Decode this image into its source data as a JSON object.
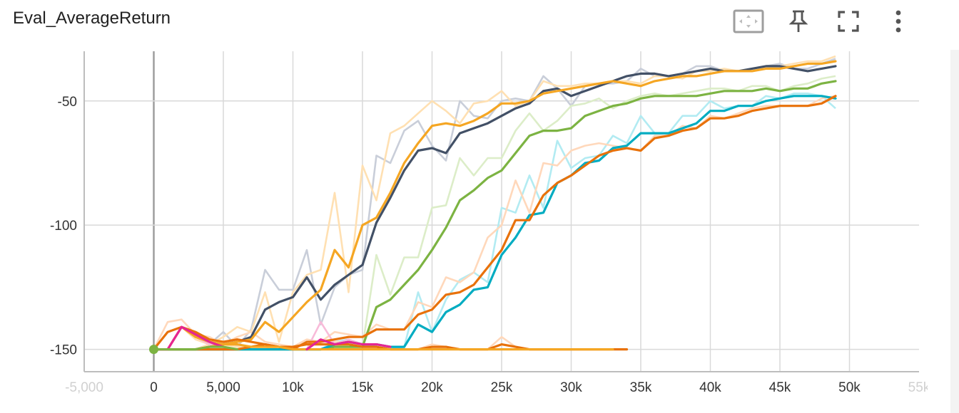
{
  "title": "Eval_AverageReturn",
  "toolbar": {
    "icons": [
      "fit-domain-icon",
      "pin-icon",
      "fullscreen-icon",
      "more-vert-icon"
    ]
  },
  "colors": {
    "grid": "#d9d9d9",
    "axis": "#bdbdbd",
    "zero_axis": "#9e9e9e",
    "start_dot": "#7cb342"
  },
  "chart_data": {
    "type": "line",
    "title": "Eval_AverageReturn",
    "xlabel": "",
    "ylabel": "",
    "xlim": [
      -5000,
      55000
    ],
    "ylim": [
      -159,
      -30
    ],
    "x_ticks": [
      {
        "value": -5000,
        "label": "-5,000",
        "faded": true
      },
      {
        "value": 0,
        "label": "0"
      },
      {
        "value": 5000,
        "label": "5,000"
      },
      {
        "value": 10000,
        "label": "10k"
      },
      {
        "value": 15000,
        "label": "15k"
      },
      {
        "value": 20000,
        "label": "20k"
      },
      {
        "value": 25000,
        "label": "25k"
      },
      {
        "value": 30000,
        "label": "30k"
      },
      {
        "value": 35000,
        "label": "35k"
      },
      {
        "value": 40000,
        "label": "40k"
      },
      {
        "value": 45000,
        "label": "45k"
      },
      {
        "value": 50000,
        "label": "50k"
      },
      {
        "value": 55000,
        "label": "55k",
        "faded": true
      }
    ],
    "y_ticks": [
      {
        "value": -50,
        "label": "-50"
      },
      {
        "value": -100,
        "label": "-100"
      },
      {
        "value": -150,
        "label": "-150"
      }
    ],
    "grid": true,
    "series": [
      {
        "color": "#425066",
        "raw_color": "#c9ced9",
        "x": [
          0,
          1000,
          2000,
          3000,
          4000,
          5000,
          6000,
          7000,
          8000,
          9000,
          10000,
          11000,
          12000,
          13000,
          14000,
          15000,
          16000,
          17000,
          18000,
          19000,
          20000,
          21000,
          22000,
          23000,
          24000,
          25000,
          26000,
          27000,
          28000,
          29000,
          30000,
          31000,
          32000,
          33000,
          34000,
          35000,
          36000,
          37000,
          38000,
          39000,
          40000,
          41000,
          42000,
          43000,
          44000,
          45000,
          46000,
          47000,
          48000,
          49000
        ],
        "values": [
          -150,
          -150,
          -150,
          -150,
          -149,
          -148,
          -147,
          -145,
          -134,
          -131,
          -129,
          -121,
          -130,
          -124,
          -120,
          -116,
          -99,
          -89,
          -78,
          -70,
          -69,
          -71,
          -63,
          -61,
          -59,
          -56,
          -53,
          -51,
          -46,
          -45,
          -48,
          -46,
          -44,
          -42,
          -40,
          -39,
          -39,
          -40,
          -39,
          -38,
          -37,
          -38,
          -38,
          -37,
          -36,
          -36,
          -37,
          -38,
          -37,
          -36
        ],
        "raw": [
          -150,
          -150,
          -150,
          -150,
          -148,
          -143,
          -149,
          -142,
          -118,
          -126,
          -126,
          -110,
          -140,
          -125,
          -120,
          -118,
          -72,
          -75,
          -62,
          -58,
          -68,
          -74,
          -50,
          -56,
          -57,
          -50,
          -49,
          -50,
          -40,
          -45,
          -52,
          -44,
          -43,
          -43,
          -42,
          -37,
          -40,
          -40,
          -39,
          -36,
          -36,
          -38,
          -38,
          -37,
          -36,
          -35,
          -37,
          -37,
          -35,
          -33
        ]
      },
      {
        "color": "#f5a623",
        "raw_color": "#ffe0b2",
        "x": [
          0,
          1000,
          2000,
          3000,
          4000,
          5000,
          6000,
          7000,
          8000,
          9000,
          10000,
          11000,
          12000,
          13000,
          14000,
          15000,
          16000,
          17000,
          18000,
          19000,
          20000,
          21000,
          22000,
          23000,
          24000,
          25000,
          26000,
          27000,
          28000,
          29000,
          30000,
          31000,
          32000,
          33000,
          34000,
          35000,
          36000,
          37000,
          38000,
          39000,
          40000,
          41000,
          42000,
          43000,
          44000,
          45000,
          46000,
          47000,
          48000,
          49000
        ],
        "values": [
          -150,
          -150,
          -150,
          -150,
          -149,
          -148,
          -147,
          -146,
          -139,
          -143,
          -137,
          -131,
          -126,
          -110,
          -117,
          -100,
          -97,
          -87,
          -75,
          -67,
          -60,
          -59,
          -60,
          -58,
          -55,
          -51,
          -51,
          -50,
          -47,
          -46,
          -45,
          -44,
          -43,
          -42,
          -43,
          -44,
          -42,
          -41,
          -40,
          -40,
          -39,
          -38,
          -38,
          -38,
          -37,
          -37,
          -36,
          -35,
          -35,
          -34
        ],
        "raw": [
          -150,
          -150,
          -150,
          -150,
          -148,
          -145,
          -141,
          -143,
          -127,
          -147,
          -127,
          -120,
          -118,
          -87,
          -127,
          -76,
          -90,
          -63,
          -60,
          -55,
          -50,
          -54,
          -59,
          -51,
          -50,
          -46,
          -52,
          -50,
          -42,
          -44,
          -44,
          -43,
          -43,
          -42,
          -42,
          -43,
          -40,
          -40,
          -41,
          -38,
          -38,
          -37,
          -38,
          -38,
          -36,
          -36,
          -35,
          -34,
          -34,
          -32
        ]
      },
      {
        "color": "#7cb342",
        "raw_color": "#dcedc8",
        "x": [
          0,
          1000,
          2000,
          3000,
          4000,
          5000,
          6000,
          7000,
          8000,
          9000,
          10000,
          11000,
          12000,
          13000,
          14000,
          15000,
          16000,
          17000,
          18000,
          19000,
          20000,
          21000,
          22000,
          23000,
          24000,
          25000,
          26000,
          27000,
          28000,
          29000,
          30000,
          31000,
          32000,
          33000,
          34000,
          35000,
          36000,
          37000,
          38000,
          39000,
          40000,
          41000,
          42000,
          43000,
          44000,
          45000,
          46000,
          47000,
          48000,
          49000
        ],
        "values": [
          -150,
          -150,
          -150,
          -150,
          -150,
          -150,
          -150,
          -150,
          -150,
          -150,
          -150,
          -150,
          -150,
          -149,
          -149,
          -149,
          -133,
          -130,
          -124,
          -118,
          -110,
          -101,
          -90,
          -86,
          -81,
          -78,
          -71,
          -64,
          -62,
          -62,
          -61,
          -56,
          -54,
          -52,
          -51,
          -49,
          -48,
          -48,
          -48,
          -48,
          -47,
          -46,
          -46,
          -46,
          -45,
          -46,
          -45,
          -45,
          -43,
          -42
        ],
        "raw": [
          -150,
          -150,
          -150,
          -150,
          -150,
          -150,
          -150,
          -150,
          -150,
          -150,
          -150,
          -150,
          -150,
          -149,
          -149,
          -149,
          -112,
          -128,
          -113,
          -113,
          -93,
          -92,
          -73,
          -80,
          -73,
          -73,
          -62,
          -55,
          -62,
          -58,
          -52,
          -51,
          -49,
          -53,
          -50,
          -48,
          -47,
          -48,
          -47,
          -46,
          -45,
          -45,
          -46,
          -44,
          -44,
          -46,
          -44,
          -43,
          -41,
          -40
        ]
      },
      {
        "color": "#00acc1",
        "raw_color": "#b2ebf2",
        "x": [
          0,
          1000,
          2000,
          3000,
          4000,
          5000,
          6000,
          7000,
          8000,
          9000,
          10000,
          11000,
          12000,
          13000,
          14000,
          15000,
          16000,
          17000,
          18000,
          19000,
          20000,
          21000,
          22000,
          23000,
          24000,
          25000,
          26000,
          27000,
          28000,
          29000,
          30000,
          31000,
          32000,
          33000,
          34000,
          35000,
          36000,
          37000,
          38000,
          39000,
          40000,
          41000,
          42000,
          43000,
          44000,
          45000,
          46000,
          47000,
          48000,
          49000
        ],
        "values": [
          -150,
          -150,
          -150,
          -150,
          -150,
          -150,
          -150,
          -150,
          -150,
          -150,
          -150,
          -150,
          -150,
          -148,
          -147,
          -148,
          -148,
          -149,
          -149,
          -140,
          -143,
          -135,
          -132,
          -126,
          -125,
          -112,
          -105,
          -96,
          -95,
          -83,
          -80,
          -75,
          -74,
          -69,
          -68,
          -63,
          -63,
          -63,
          -61,
          -59,
          -54,
          -54,
          -52,
          -52,
          -50,
          -49,
          -48,
          -48,
          -48,
          -49
        ],
        "raw": [
          -150,
          -150,
          -150,
          -150,
          -150,
          -150,
          -150,
          -150,
          -150,
          -150,
          -150,
          -150,
          -150,
          -147,
          -146,
          -148,
          -149,
          -150,
          -149,
          -127,
          -143,
          -130,
          -122,
          -119,
          -123,
          -93,
          -95,
          -80,
          -93,
          -66,
          -77,
          -73,
          -72,
          -64,
          -67,
          -56,
          -63,
          -63,
          -56,
          -56,
          -50,
          -53,
          -52,
          -52,
          -48,
          -49,
          -47,
          -47,
          -48,
          -53
        ]
      },
      {
        "color": "#e8710a",
        "raw_color": "#ffd8bb",
        "x": [
          0,
          1000,
          2000,
          3000,
          4000,
          5000,
          6000,
          7000,
          8000,
          9000,
          10000,
          11000,
          12000,
          13000,
          14000,
          15000,
          16000,
          17000,
          18000,
          19000,
          20000,
          21000,
          22000,
          23000,
          24000,
          25000,
          26000,
          27000,
          28000,
          29000,
          30000,
          31000,
          32000,
          33000,
          34000,
          35000,
          36000,
          37000,
          38000,
          39000,
          40000,
          41000,
          42000,
          43000,
          44000,
          45000,
          46000,
          47000,
          48000,
          49000
        ],
        "values": [
          -150,
          -150,
          -150,
          -150,
          -150,
          -150,
          -150,
          -149,
          -148,
          -149,
          -150,
          -147,
          -147,
          -146,
          -145,
          -145,
          -142,
          -142,
          -142,
          -136,
          -134,
          -128,
          -127,
          -124,
          -117,
          -110,
          -98,
          -98,
          -88,
          -83,
          -80,
          -76,
          -72,
          -70,
          -69,
          -70,
          -65,
          -64,
          -62,
          -61,
          -57,
          -57,
          -56,
          -54,
          -53,
          -52,
          -52,
          -52,
          -51,
          -48
        ],
        "raw": [
          -150,
          -150,
          -150,
          -150,
          -150,
          -150,
          -150,
          -149,
          -148,
          -149,
          -150,
          -147,
          -147,
          -143,
          -144,
          -145,
          -140,
          -142,
          -142,
          -131,
          -133,
          -121,
          -123,
          -119,
          -105,
          -100,
          -82,
          -95,
          -75,
          -76,
          -70,
          -68,
          -67,
          -68,
          -69,
          -70,
          -64,
          -64,
          -60,
          -61,
          -56,
          -57,
          -55,
          -53,
          -52,
          -52,
          -52,
          -52,
          -49,
          -48
        ]
      },
      {
        "color": "#e8710a",
        "raw_color": "#ffd8bb",
        "x": [
          0,
          1000,
          2000,
          3000,
          4000,
          5000,
          6000,
          7000,
          8000,
          9000,
          10000,
          11000,
          12000,
          13000,
          14000,
          15000,
          16000,
          17000,
          18000,
          19000,
          20000,
          21000,
          22000,
          23000,
          24000,
          25000,
          26000,
          27000,
          28000,
          29000,
          30000,
          31000,
          32000,
          33000,
          34000
        ],
        "values": [
          -150,
          -143,
          -141,
          -143,
          -146,
          -147,
          -146,
          -147,
          -148,
          -149,
          -149,
          -148,
          -148,
          -148,
          -148,
          -149,
          -149,
          -150,
          -150,
          -150,
          -149,
          -149,
          -150,
          -150,
          -150,
          -148,
          -149,
          -150,
          -150,
          -150,
          -150,
          -150,
          -150,
          -150,
          -150
        ],
        "raw": [
          -150,
          -139,
          -138,
          -144,
          -145,
          -148,
          -145,
          -143,
          -147,
          -148,
          -149,
          -146,
          -147,
          -147,
          -147,
          -148,
          -149,
          -150,
          -150,
          -150,
          -148,
          -149,
          -150,
          -150,
          -150,
          -145,
          -149,
          -150,
          -150,
          -150,
          -150,
          -150,
          -150,
          -150,
          -150
        ]
      },
      {
        "color": "#f5a623",
        "raw_color": "#ffe0b2",
        "x": [
          0,
          1000,
          2000,
          3000,
          4000,
          5000,
          6000,
          7000,
          8000,
          9000,
          10000,
          11000,
          12000,
          13000,
          14000,
          15000,
          16000,
          17000,
          18000,
          19000,
          20000,
          21000,
          22000,
          23000,
          24000,
          25000,
          26000,
          27000,
          28000,
          29000,
          30000,
          31000,
          32000,
          33000
        ],
        "values": [
          -150,
          -150,
          -141,
          -145,
          -147,
          -148,
          -148,
          -149,
          -149,
          -149,
          -150,
          -150,
          -150,
          -150,
          -150,
          -150,
          -150,
          -150,
          -150,
          -150,
          -150,
          -150,
          -150,
          -150,
          -150,
          -150,
          -150,
          -150,
          -150,
          -150,
          -150,
          -150,
          -150,
          -150
        ],
        "raw": [
          -150,
          -150,
          -141,
          -146,
          -148,
          -148,
          -149,
          -149,
          -149,
          -150,
          -150,
          -150,
          -150,
          -150,
          -150,
          -150,
          -150,
          -150,
          -150,
          -150,
          -150,
          -150,
          -150,
          -150,
          -150,
          -150,
          -150,
          -150,
          -150,
          -150,
          -150,
          -150,
          -150,
          -150
        ]
      },
      {
        "color": "#e52592",
        "raw_color": "#f8bbd9",
        "x": [
          0,
          1000,
          2000,
          3000,
          4000,
          5000
        ],
        "values": [
          -150,
          -150,
          -141,
          -144,
          -147,
          -149
        ],
        "raw": [
          -150,
          -150,
          -141,
          -145,
          -148,
          -149
        ]
      },
      {
        "color": "#e52592",
        "raw_color": "#f8bbd9",
        "x": [
          11000,
          12000,
          13000,
          14000,
          15000,
          16000,
          17000
        ],
        "values": [
          -150,
          -146,
          -148,
          -147,
          -148,
          -148,
          -149
        ],
        "raw": [
          -150,
          -139,
          -148,
          -146,
          -148,
          -148,
          -149
        ]
      },
      {
        "color": "#7cb342",
        "raw_color": "#dcedc8",
        "x": [
          0,
          1000,
          2000,
          3000,
          4000,
          5000,
          6000
        ],
        "values": [
          -150,
          -150,
          -150,
          -150,
          -149,
          -149,
          -150
        ],
        "raw": [
          -150,
          -150,
          -150,
          -150,
          -149,
          -149,
          -150
        ]
      }
    ]
  }
}
